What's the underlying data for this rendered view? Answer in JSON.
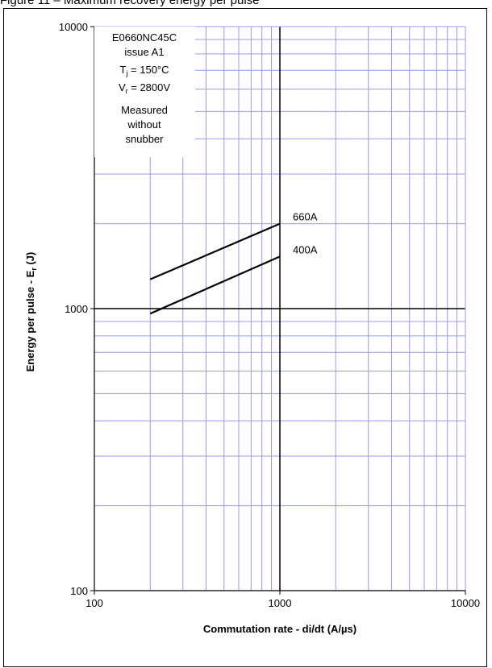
{
  "page": {
    "title": "Figure 11 – Maximum recovery energy per pulse"
  },
  "chart_data": {
    "type": "line",
    "title": "",
    "xlabel": "Commutation rate - di/dt (A/µs)",
    "ylabel": "Energy per pulse - Er (J)",
    "ylabel_main": "Energy per pulse - E",
    "ylabel_sub": "r",
    "ylabel_tail": " (J)",
    "x_scale": "log",
    "y_scale": "log",
    "xlim": [
      100,
      10000
    ],
    "ylim": [
      100,
      10000
    ],
    "x_ticks": [
      "100",
      "1000",
      "10000"
    ],
    "y_ticks": [
      "100",
      "1000",
      "10000"
    ],
    "grid": true,
    "series": [
      {
        "name": "660A",
        "x": [
          200,
          1000
        ],
        "y": [
          1270,
          2000
        ]
      },
      {
        "name": "400A",
        "x": [
          200,
          1000
        ],
        "y": [
          960,
          1530
        ]
      }
    ],
    "info_box": {
      "device": "E0660NC45C",
      "issue": "issue A1",
      "tj_main": "T",
      "tj_sub": "j",
      "tj_value": " = 150°C",
      "vr_main": "V",
      "vr_sub": "r",
      "vr_value": " = 2800V",
      "note": [
        "Measured",
        "without",
        "snubber"
      ]
    },
    "colors": {
      "grid": "#9999ee",
      "major_grid": "#000000",
      "series": "#000000"
    }
  }
}
